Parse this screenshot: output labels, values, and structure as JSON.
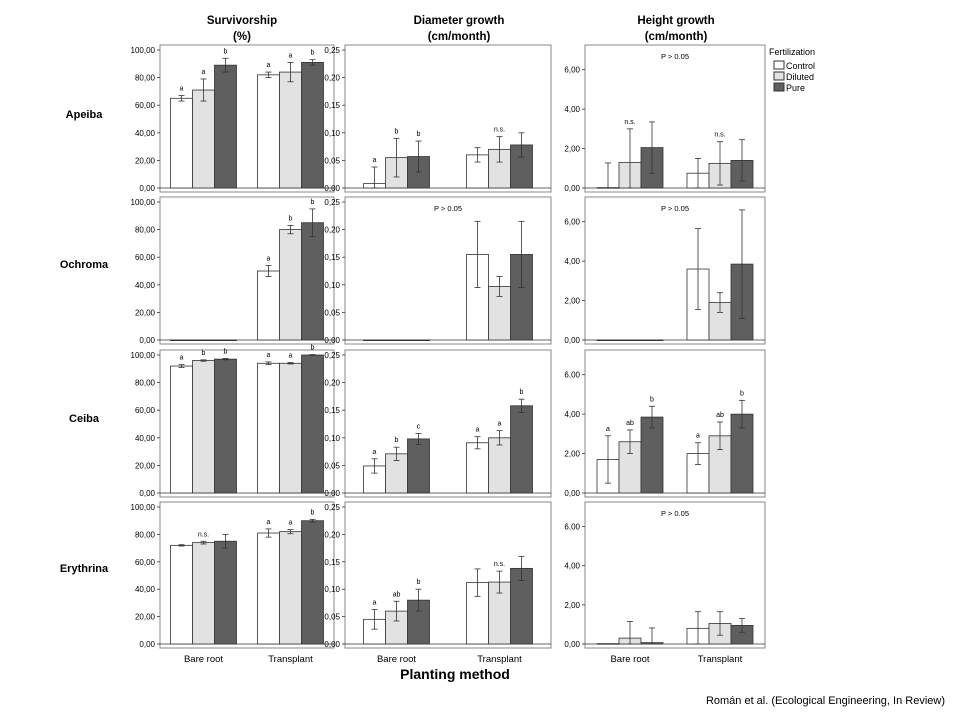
{
  "figure": {
    "x_axis_title": "Planting method",
    "credit": "Román et al. (Ecological Engineering, In Review)",
    "legend": {
      "title": "Fertilization",
      "items": [
        {
          "label": "Control",
          "color": "#ffffff"
        },
        {
          "label": "Diluted",
          "color": "#e2e2e2"
        },
        {
          "label": "Pure",
          "color": "#5f5f5f"
        }
      ]
    },
    "columns": [
      {
        "title_line1": "Survivorship",
        "title_line2": "(%)"
      },
      {
        "title_line1": "Diameter growth",
        "title_line2": "(cm/month)"
      },
      {
        "title_line1": "Height growth",
        "title_line2": "(cm/month)"
      }
    ],
    "rows": [
      "Apeiba",
      "Ochroma",
      "Ceiba",
      "Erythrina"
    ],
    "x_categories": [
      "Bare root",
      "Transplant"
    ],
    "colors": {
      "control": "#ffffff",
      "diluted": "#e2e2e2",
      "pure": "#5f5f5f",
      "outline": "#333333"
    }
  },
  "chart_data": [
    {
      "type": "bar",
      "panel": "Apeiba-Survivorship",
      "categories": [
        "Bare root",
        "Transplant"
      ],
      "ylim": [
        0,
        100
      ],
      "yticks": [
        "0,00",
        "20,00",
        "40,00",
        "60,00",
        "80,00",
        "100,00"
      ],
      "series": [
        {
          "name": "Control",
          "values": [
            65,
            82
          ],
          "err": [
            2,
            2
          ],
          "letters": [
            "a",
            "a"
          ]
        },
        {
          "name": "Diluted",
          "values": [
            71,
            84
          ],
          "err": [
            8,
            7
          ],
          "letters": [
            "a",
            "a"
          ]
        },
        {
          "name": "Pure",
          "values": [
            89,
            91
          ],
          "err": [
            5,
            2
          ],
          "letters": [
            "b",
            "b"
          ]
        }
      ],
      "note": ""
    },
    {
      "type": "bar",
      "panel": "Apeiba-Diameter",
      "categories": [
        "Bare root",
        "Transplant"
      ],
      "ylim": [
        0,
        0.25
      ],
      "yticks": [
        "0,00",
        "0,05",
        "0,10",
        "0,15",
        "0,20",
        "0,25"
      ],
      "series": [
        {
          "name": "Control",
          "values": [
            0.008,
            0.06
          ],
          "err": [
            0.03,
            0.013
          ],
          "letters": [
            "a",
            ""
          ]
        },
        {
          "name": "Diluted",
          "values": [
            0.055,
            0.07
          ],
          "err": [
            0.035,
            0.023
          ],
          "letters": [
            "b",
            "n.s."
          ]
        },
        {
          "name": "Pure",
          "values": [
            0.057,
            0.078
          ],
          "err": [
            0.028,
            0.022
          ],
          "letters": [
            "b",
            ""
          ]
        }
      ],
      "note": ""
    },
    {
      "type": "bar",
      "panel": "Apeiba-Height",
      "categories": [
        "Bare root",
        "Transplant"
      ],
      "ylim": [
        0,
        7
      ],
      "yticks": [
        "0,00",
        "2,00",
        "4,00",
        "6,00"
      ],
      "series": [
        {
          "name": "Control",
          "values": [
            0.02,
            0.75
          ],
          "err": [
            1.25,
            0.75
          ],
          "letters": [
            "",
            ""
          ]
        },
        {
          "name": "Diluted",
          "values": [
            1.3,
            1.25
          ],
          "err": [
            1.7,
            1.1
          ],
          "letters": [
            "n.s.",
            "n.s."
          ]
        },
        {
          "name": "Pure",
          "values": [
            2.05,
            1.4
          ],
          "err": [
            1.3,
            1.05
          ],
          "letters": [
            "",
            ""
          ]
        }
      ],
      "note": "P > 0.05"
    },
    {
      "type": "bar",
      "panel": "Ochroma-Survivorship",
      "categories": [
        "Bare root",
        "Transplant"
      ],
      "ylim": [
        0,
        100
      ],
      "yticks": [
        "0,00",
        "20,00",
        "40,00",
        "60,00",
        "80,00",
        "100,00"
      ],
      "series": [
        {
          "name": "Control",
          "values": [
            0,
            50
          ],
          "err": [
            0,
            4
          ],
          "letters": [
            "",
            "a"
          ]
        },
        {
          "name": "Diluted",
          "values": [
            0,
            80
          ],
          "err": [
            0,
            3
          ],
          "letters": [
            "",
            "b"
          ]
        },
        {
          "name": "Pure",
          "values": [
            0,
            85
          ],
          "err": [
            0,
            10
          ],
          "letters": [
            "",
            "b"
          ]
        }
      ],
      "note": ""
    },
    {
      "type": "bar",
      "panel": "Ochroma-Diameter",
      "categories": [
        "Bare root",
        "Transplant"
      ],
      "ylim": [
        0,
        0.25
      ],
      "yticks": [
        "0,00",
        "0,05",
        "0,10",
        "0,15",
        "0,20",
        "0,25"
      ],
      "series": [
        {
          "name": "Control",
          "values": [
            0,
            0.155
          ],
          "err": [
            0,
            0.06
          ],
          "letters": [
            "",
            ""
          ]
        },
        {
          "name": "Diluted",
          "values": [
            0,
            0.097
          ],
          "err": [
            0,
            0.018
          ],
          "letters": [
            "",
            ""
          ]
        },
        {
          "name": "Pure",
          "values": [
            0,
            0.155
          ],
          "err": [
            0,
            0.06
          ],
          "letters": [
            "",
            ""
          ]
        }
      ],
      "note": "P > 0.05"
    },
    {
      "type": "bar",
      "panel": "Ochroma-Height",
      "categories": [
        "Bare root",
        "Transplant"
      ],
      "ylim": [
        0,
        7
      ],
      "yticks": [
        "0,00",
        "2,00",
        "4,00",
        "6,00"
      ],
      "series": [
        {
          "name": "Control",
          "values": [
            0,
            3.6
          ],
          "err": [
            0,
            2.05
          ],
          "letters": [
            "",
            ""
          ]
        },
        {
          "name": "Diluted",
          "values": [
            0,
            1.9
          ],
          "err": [
            0,
            0.5
          ],
          "letters": [
            "",
            ""
          ]
        },
        {
          "name": "Pure",
          "values": [
            0,
            3.85
          ],
          "err": [
            0,
            2.75
          ],
          "letters": [
            "",
            ""
          ]
        }
      ],
      "note": "P > 0.05"
    },
    {
      "type": "bar",
      "panel": "Ceiba-Survivorship",
      "categories": [
        "Bare root",
        "Transplant"
      ],
      "ylim": [
        0,
        100
      ],
      "yticks": [
        "0,00",
        "20,00",
        "40,00",
        "60,00",
        "80,00",
        "100,00"
      ],
      "series": [
        {
          "name": "Control",
          "values": [
            92,
            94
          ],
          "err": [
            1,
            1
          ],
          "letters": [
            "a",
            "a"
          ]
        },
        {
          "name": "Diluted",
          "values": [
            96,
            94
          ],
          "err": [
            0.5,
            0.5
          ],
          "letters": [
            "b",
            "a"
          ]
        },
        {
          "name": "Pure",
          "values": [
            97,
            100
          ],
          "err": [
            0.5,
            0.3
          ],
          "letters": [
            "b",
            "b"
          ]
        }
      ],
      "note": ""
    },
    {
      "type": "bar",
      "panel": "Ceiba-Diameter",
      "categories": [
        "Bare root",
        "Transplant"
      ],
      "ylim": [
        0,
        0.25
      ],
      "yticks": [
        "0,00",
        "0,05",
        "0,10",
        "0,15",
        "0,20",
        "0,25"
      ],
      "series": [
        {
          "name": "Control",
          "values": [
            0.049,
            0.091
          ],
          "err": [
            0.013,
            0.011
          ],
          "letters": [
            "a",
            "a"
          ]
        },
        {
          "name": "Diluted",
          "values": [
            0.071,
            0.1
          ],
          "err": [
            0.012,
            0.013
          ],
          "letters": [
            "b",
            "a"
          ]
        },
        {
          "name": "Pure",
          "values": [
            0.098,
            0.158
          ],
          "err": [
            0.01,
            0.012
          ],
          "letters": [
            "c",
            "b"
          ]
        }
      ],
      "note": ""
    },
    {
      "type": "bar",
      "panel": "Ceiba-Height",
      "categories": [
        "Bare root",
        "Transplant"
      ],
      "ylim": [
        0,
        7
      ],
      "yticks": [
        "0,00",
        "2,00",
        "4,00",
        "6,00"
      ],
      "series": [
        {
          "name": "Control",
          "values": [
            1.7,
            2.0
          ],
          "err": [
            1.2,
            0.55
          ],
          "letters": [
            "a",
            "a"
          ]
        },
        {
          "name": "Diluted",
          "values": [
            2.6,
            2.9
          ],
          "err": [
            0.6,
            0.7
          ],
          "letters": [
            "ab",
            "ab"
          ]
        },
        {
          "name": "Pure",
          "values": [
            3.85,
            4.0
          ],
          "err": [
            0.55,
            0.7
          ],
          "letters": [
            "b",
            "b"
          ]
        }
      ],
      "note": ""
    },
    {
      "type": "bar",
      "panel": "Erythrina-Survivorship",
      "categories": [
        "Bare root",
        "Transplant"
      ],
      "ylim": [
        0,
        100
      ],
      "yticks": [
        "0,00",
        "20,00",
        "40,00",
        "60,00",
        "80,00",
        "100,00"
      ],
      "series": [
        {
          "name": "Control",
          "values": [
            72,
            81
          ],
          "err": [
            0.5,
            3
          ],
          "letters": [
            "",
            "a"
          ]
        },
        {
          "name": "Diluted",
          "values": [
            74,
            82
          ],
          "err": [
            1,
            1.5
          ],
          "letters": [
            "n.s.",
            "a"
          ]
        },
        {
          "name": "Pure",
          "values": [
            75,
            90
          ],
          "err": [
            5,
            1
          ],
          "letters": [
            "",
            "b"
          ]
        }
      ],
      "note": ""
    },
    {
      "type": "bar",
      "panel": "Erythrina-Diameter",
      "categories": [
        "Bare root",
        "Transplant"
      ],
      "ylim": [
        0,
        0.25
      ],
      "yticks": [
        "0,00",
        "0,05",
        "0,10",
        "0,15",
        "0,20",
        "0,25"
      ],
      "series": [
        {
          "name": "Control",
          "values": [
            0.045,
            0.112
          ],
          "err": [
            0.018,
            0.025
          ],
          "letters": [
            "a",
            ""
          ]
        },
        {
          "name": "Diluted",
          "values": [
            0.06,
            0.113
          ],
          "err": [
            0.018,
            0.02
          ],
          "letters": [
            "ab",
            "n.s."
          ]
        },
        {
          "name": "Pure",
          "values": [
            0.08,
            0.138
          ],
          "err": [
            0.02,
            0.022
          ],
          "letters": [
            "b",
            ""
          ]
        }
      ],
      "note": ""
    },
    {
      "type": "bar",
      "panel": "Erythrina-Height",
      "categories": [
        "Bare root",
        "Transplant"
      ],
      "ylim": [
        0,
        7
      ],
      "yticks": [
        "0,00",
        "2,00",
        "4,00",
        "6,00"
      ],
      "series": [
        {
          "name": "Control",
          "values": [
            0.02,
            0.8
          ],
          "err": [
            0,
            0.85
          ],
          "letters": [
            "",
            ""
          ]
        },
        {
          "name": "Diluted",
          "values": [
            0.3,
            1.05
          ],
          "err": [
            0.85,
            0.6
          ],
          "letters": [
            "",
            ""
          ]
        },
        {
          "name": "Pure",
          "values": [
            0.07,
            0.95
          ],
          "err": [
            0.75,
            0.35
          ],
          "letters": [
            "",
            ""
          ]
        }
      ],
      "note": "P > 0.05"
    }
  ]
}
